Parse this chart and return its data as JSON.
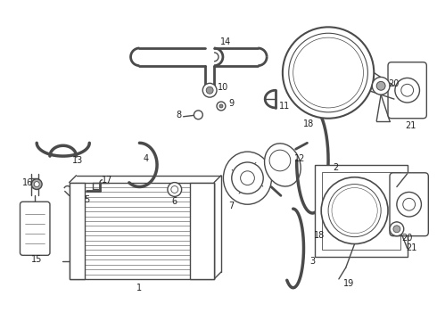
{
  "bg_color": "#ffffff",
  "line_color": "#4a4a4a",
  "label_color": "#222222",
  "figsize": [
    4.9,
    3.6
  ],
  "dpi": 100
}
